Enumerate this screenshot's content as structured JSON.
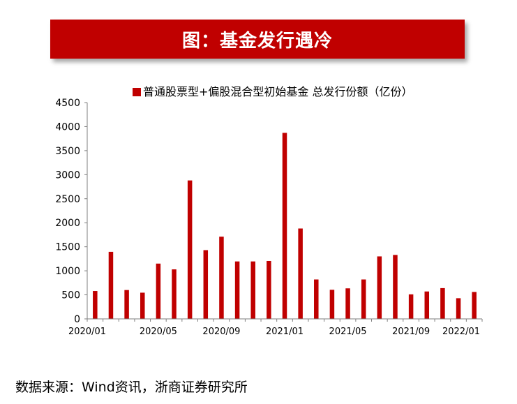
{
  "banner": {
    "title": "图：基金发行遇冷"
  },
  "source": "数据来源：Wind资讯，浙商证券研究所",
  "colors": {
    "banner": "#c00000",
    "bar": "#c00000",
    "axis": "#7f7f7f"
  },
  "chart_data": {
    "type": "bar",
    "title": "",
    "xlabel": "",
    "ylabel": "",
    "ylim": [
      0,
      4500
    ],
    "yticks": [
      0,
      500,
      1000,
      1500,
      2000,
      2500,
      3000,
      3500,
      4000,
      4500
    ],
    "grid": false,
    "legend_position": "top",
    "categories": [
      "2020/01",
      "2020/02",
      "2020/03",
      "2020/04",
      "2020/05",
      "2020/06",
      "2020/07",
      "2020/08",
      "2020/09",
      "2020/10",
      "2020/11",
      "2020/12",
      "2021/01",
      "2021/02",
      "2021/03",
      "2021/04",
      "2021/05",
      "2021/06",
      "2021/07",
      "2021/08",
      "2021/09",
      "2021/10",
      "2021/11",
      "2021/12",
      "2022/01"
    ],
    "xtick_labels": [
      "2020/01",
      "2020/05",
      "2020/09",
      "2021/01",
      "2021/05",
      "2021/09",
      "2022/01"
    ],
    "series": [
      {
        "name": "普通股票型+偏股混合型初始基金 总发行份额（亿份）",
        "values": [
          580,
          1395,
          600,
          545,
          1150,
          1030,
          2880,
          1430,
          1710,
          1195,
          1195,
          1205,
          3870,
          1880,
          820,
          605,
          635,
          820,
          1300,
          1330,
          510,
          570,
          640,
          430,
          560
        ]
      }
    ]
  }
}
